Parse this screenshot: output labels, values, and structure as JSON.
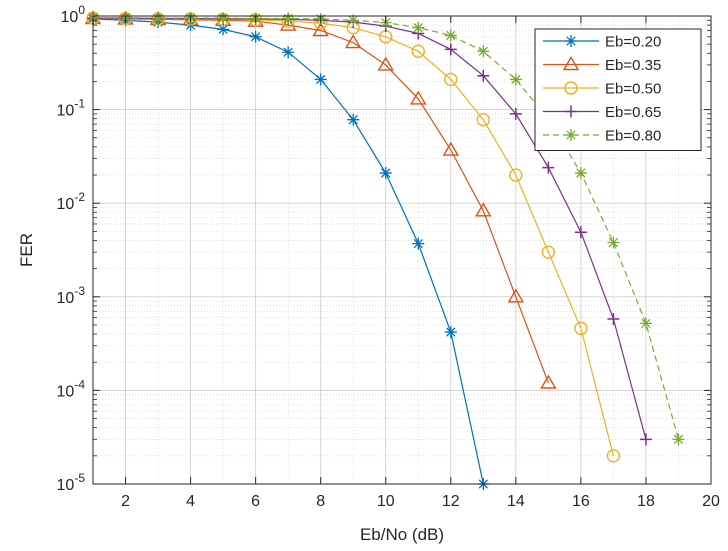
{
  "chart_data": {
    "type": "line",
    "title": "",
    "xlabel": "Eb/No (dB)",
    "ylabel": "FER",
    "xlim": [
      1,
      20
    ],
    "ylim": [
      1e-05,
      1
    ],
    "yscale": "log",
    "grid": true,
    "minor_grid": true,
    "legend_position": "top-right",
    "x_ticks": [
      2,
      4,
      6,
      8,
      10,
      12,
      14,
      16,
      18,
      20
    ],
    "x_tick_labels": [
      "2",
      "4",
      "6",
      "8",
      "10",
      "12",
      "14",
      "16",
      "18",
      "20"
    ],
    "y_ticks": [
      1e-05,
      0.0001,
      0.001,
      0.01,
      0.1,
      1
    ],
    "y_tick_labels": [
      {
        "base": "10",
        "exp": "-5"
      },
      {
        "base": "10",
        "exp": "-4"
      },
      {
        "base": "10",
        "exp": "-3"
      },
      {
        "base": "10",
        "exp": "-2"
      },
      {
        "base": "10",
        "exp": "-1"
      },
      {
        "base": "10",
        "exp": "0"
      }
    ],
    "series": [
      {
        "name": "Eb=0.20",
        "color": "#0072BD",
        "marker": "asterisk",
        "dash": "solid",
        "x": [
          1,
          2,
          3,
          4,
          5,
          6,
          7,
          8,
          9,
          10,
          11,
          12,
          13
        ],
        "y": [
          0.93,
          0.9,
          0.86,
          0.8,
          0.72,
          0.6,
          0.41,
          0.21,
          0.078,
          0.021,
          0.0037,
          0.00042,
          1e-05
        ]
      },
      {
        "name": "Eb=0.35",
        "color": "#D95319",
        "marker": "triangle",
        "dash": "solid",
        "x": [
          1,
          2,
          3,
          4,
          5,
          6,
          7,
          8,
          9,
          10,
          11,
          12,
          13,
          14,
          15
        ],
        "y": [
          0.94,
          0.93,
          0.92,
          0.91,
          0.9,
          0.88,
          0.8,
          0.7,
          0.52,
          0.3,
          0.13,
          0.037,
          0.0083,
          0.001,
          0.00012
        ]
      },
      {
        "name": "Eb=0.50",
        "color": "#EDB120",
        "marker": "circle",
        "dash": "solid",
        "x": [
          1,
          2,
          3,
          4,
          5,
          6,
          7,
          8,
          9,
          10,
          11,
          12,
          13,
          14,
          15,
          16,
          17
        ],
        "y": [
          0.95,
          0.94,
          0.93,
          0.93,
          0.92,
          0.91,
          0.88,
          0.84,
          0.75,
          0.6,
          0.42,
          0.21,
          0.078,
          0.02,
          0.003,
          0.00046,
          2e-05
        ]
      },
      {
        "name": "Eb=0.65",
        "color": "#7E2F8E",
        "marker": "plus",
        "dash": "solid",
        "x": [
          1,
          2,
          3,
          4,
          5,
          6,
          7,
          8,
          9,
          10,
          11,
          12,
          13,
          14,
          15,
          16,
          17,
          18
        ],
        "y": [
          0.95,
          0.95,
          0.94,
          0.94,
          0.93,
          0.93,
          0.92,
          0.9,
          0.86,
          0.78,
          0.65,
          0.44,
          0.23,
          0.09,
          0.024,
          0.0049,
          0.00058,
          3e-05
        ]
      },
      {
        "name": "Eb=0.80",
        "color": "#77AC30",
        "marker": "asterisk",
        "dash": "dashed",
        "x": [
          1,
          2,
          3,
          4,
          5,
          6,
          7,
          8,
          9,
          10,
          11,
          12,
          13,
          14,
          15,
          16,
          17,
          18,
          19
        ],
        "y": [
          0.96,
          0.96,
          0.95,
          0.95,
          0.95,
          0.94,
          0.94,
          0.93,
          0.9,
          0.85,
          0.75,
          0.62,
          0.42,
          0.21,
          0.079,
          0.021,
          0.0038,
          0.00052,
          3e-05
        ]
      }
    ]
  }
}
